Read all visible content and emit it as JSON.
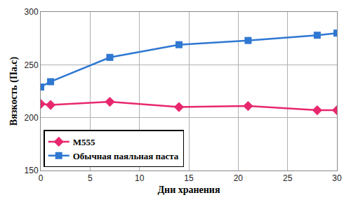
{
  "chart_data": {
    "type": "line",
    "x_label": "Дни хранения",
    "y_label": "Вязкость (Па.с)",
    "series": [
      {
        "name": "M555",
        "color": "#e8286e",
        "marker": "diamond",
        "x": [
          0,
          1,
          7,
          14,
          21,
          28,
          30
        ],
        "values": [
          213,
          212,
          215,
          210,
          211,
          207,
          207
        ]
      },
      {
        "name": "Обычная паяльная паста",
        "color": "#2f78d2",
        "marker": "square",
        "x": [
          0,
          1,
          7,
          14,
          21,
          28,
          30
        ],
        "values": [
          229,
          234,
          257,
          269,
          273,
          278,
          280
        ]
      }
    ],
    "xlim": [
      0,
      30
    ],
    "xticks": [
      0,
      5,
      10,
      15,
      20,
      25,
      30
    ],
    "ylim": [
      150,
      300
    ],
    "yticks": [
      150,
      200,
      250,
      300
    ],
    "grid": true,
    "legend": "lower left"
  }
}
